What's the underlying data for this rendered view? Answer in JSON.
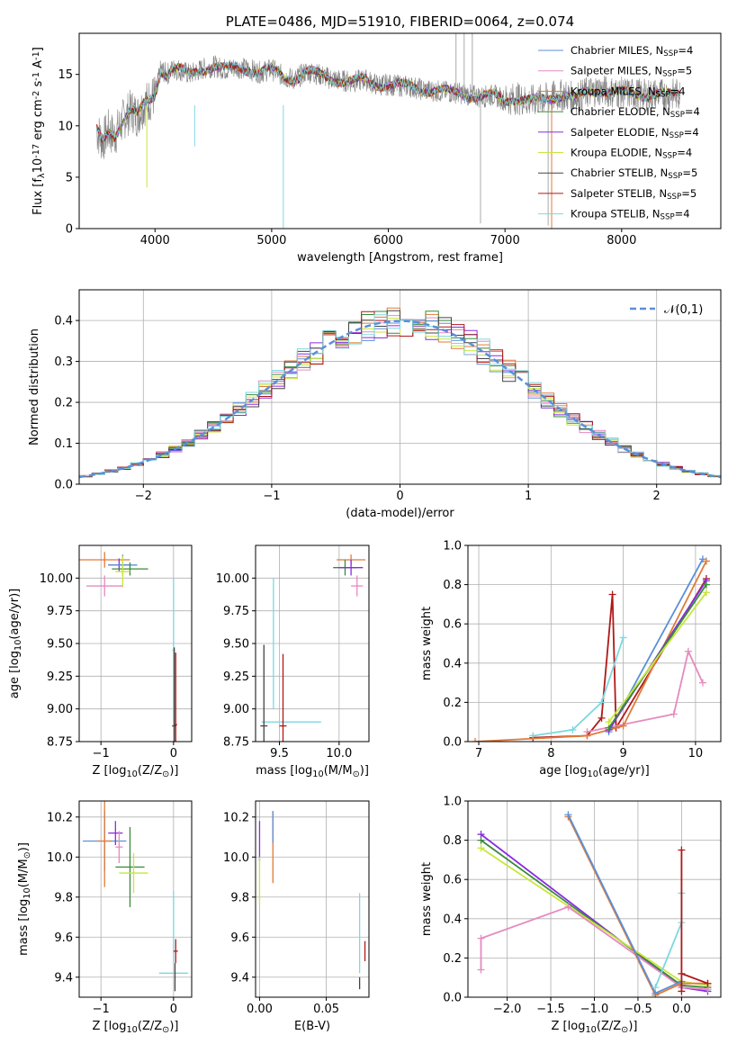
{
  "chart_data": [
    {
      "id": "spectrum",
      "type": "line",
      "title": "PLATE=0486, MJD=51910, FIBERID=0064, z=0.074",
      "xlabel": "wavelength [Angstrom, rest frame]",
      "ylabel": "Flux [f$_\\lambda$10$^{-17}$ erg cm$^{-2}$ s$^{-1}$ A$^{-1}$]",
      "xlim": [
        3350,
        8850
      ],
      "ylim": [
        0,
        19
      ],
      "xticks": [
        4000,
        5000,
        6000,
        7000,
        8000
      ],
      "yticks": [
        0,
        5,
        10,
        15
      ],
      "legend_position": "top-right",
      "series": [
        {
          "name": "Chabrier MILES, N$_{SSP}$=4",
          "color": "#5b8fd9"
        },
        {
          "name": "Salpeter MILES, N$_{SSP}$=5",
          "color": "#e58ac0"
        },
        {
          "name": "Kroupa MILES, N$_{SSP}$=4",
          "color": "#e07b39"
        },
        {
          "name": "Chabrier ELODIE, N$_{SSP}$=4",
          "color": "#3a8a3a"
        },
        {
          "name": "Salpeter ELODIE, N$_{SSP}$=4",
          "color": "#8a2be2"
        },
        {
          "name": "Kroupa ELODIE, N$_{SSP}$=4",
          "color": "#c8e63c"
        },
        {
          "name": "Chabrier STELIB, N$_{SSP}$=5",
          "color": "#444444"
        },
        {
          "name": "Salpeter STELIB, N$_{SSP}$=5",
          "color": "#b01818"
        },
        {
          "name": "Kroupa STELIB, N$_{SSP}$=4",
          "color": "#7dd8e0"
        }
      ],
      "data_color": "#808080",
      "data_points": [
        [
          3500,
          9.5
        ],
        [
          3550,
          8.5
        ],
        [
          3600,
          9.5
        ],
        [
          3650,
          9
        ],
        [
          3700,
          10
        ],
        [
          3750,
          11
        ],
        [
          3800,
          11.5
        ],
        [
          3850,
          11
        ],
        [
          3900,
          12
        ],
        [
          3950,
          12.5
        ],
        [
          4000,
          13
        ],
        [
          4050,
          15.5
        ],
        [
          4100,
          15
        ],
        [
          4150,
          15.5
        ],
        [
          4200,
          15.5
        ],
        [
          4300,
          15
        ],
        [
          4400,
          15.5
        ],
        [
          4500,
          15.8
        ],
        [
          4600,
          15.5
        ],
        [
          4700,
          15.7
        ],
        [
          4800,
          15.5
        ],
        [
          4900,
          15.2
        ],
        [
          5000,
          15.5
        ],
        [
          5100,
          14.8
        ],
        [
          5200,
          14.5
        ],
        [
          5300,
          15.3
        ],
        [
          5400,
          15
        ],
        [
          5500,
          14.6
        ],
        [
          5600,
          14.4
        ],
        [
          5700,
          14.3
        ],
        [
          5800,
          14.5
        ],
        [
          5900,
          14
        ],
        [
          6000,
          14
        ],
        [
          6100,
          13.9
        ],
        [
          6200,
          13.8
        ],
        [
          6300,
          13.5
        ],
        [
          6400,
          13.4
        ],
        [
          6500,
          13.3
        ],
        [
          6600,
          13.2
        ],
        [
          6700,
          13
        ],
        [
          6800,
          12.8
        ],
        [
          6900,
          13
        ],
        [
          7000,
          12.5
        ],
        [
          7100,
          12.7
        ],
        [
          7200,
          12.4
        ],
        [
          7300,
          12.5
        ],
        [
          7400,
          12.8
        ],
        [
          7500,
          13
        ],
        [
          7600,
          12.7
        ],
        [
          7700,
          13.2
        ],
        [
          7800,
          13.5
        ],
        [
          7900,
          13.3
        ],
        [
          8000,
          13.2
        ],
        [
          8100,
          13.1
        ],
        [
          8200,
          13
        ],
        [
          8300,
          13.1
        ],
        [
          8400,
          13
        ],
        [
          8500,
          13.1
        ]
      ]
    },
    {
      "id": "residuals",
      "type": "histogram",
      "xlabel": "(data-model)/error",
      "ylabel": "Normed distribution",
      "xlim": [
        -2.5,
        2.5
      ],
      "ylim": [
        0,
        0.475
      ],
      "xticks": [
        -2,
        -1,
        0,
        1,
        2
      ],
      "yticks": [
        0.0,
        0.1,
        0.2,
        0.3,
        0.4
      ],
      "grid": true,
      "legend_position": "top-right",
      "reference_curve": {
        "name": "$\\mathcal{N}(0,1)$",
        "color": "#5b8fd9"
      }
    },
    {
      "id": "age_vs_Z",
      "type": "errorbar",
      "xlabel": "Z [log$_{10}$($Z/Z_\\odot$)]",
      "ylabel": "age  [log$_{10}$($age/yr$)]",
      "xlim": [
        -1.3,
        0.25
      ],
      "ylim": [
        8.75,
        10.25
      ],
      "xticks": [
        -1,
        0
      ],
      "yticks": [
        8.75,
        9.0,
        9.25,
        9.5,
        9.75,
        10.0
      ],
      "grid": true,
      "points": [
        {
          "x": -0.95,
          "y": 10.14,
          "xerr": 0.35,
          "yerr": 0.06,
          "color": "#e07b39"
        },
        {
          "x": -0.75,
          "y": 10.1,
          "xerr": 0.15,
          "yerr": 0.05,
          "color": "#8a2be2"
        },
        {
          "x": -0.7,
          "y": 10.1,
          "xerr": 0.2,
          "yerr": 0.08,
          "color": "#5b8fd9"
        },
        {
          "x": -0.6,
          "y": 10.07,
          "xerr": 0.25,
          "yerr": 0.05,
          "color": "#3a8a3a"
        },
        {
          "x": -0.7,
          "y": 10.05,
          "xerr": 0.1,
          "yerr": 0.12,
          "color": "#c8e63c"
        },
        {
          "x": -0.95,
          "y": 9.94,
          "xerr": 0.25,
          "yerr": 0.08,
          "color": "#e58ac0"
        },
        {
          "x": 0.0,
          "y": 9.45,
          "xerr": 0.02,
          "yerr": 0.55,
          "color": "#7dd8e0"
        },
        {
          "x": 0.01,
          "y": 8.87,
          "xerr": 0.03,
          "yerr": 0.6,
          "color": "#444444"
        },
        {
          "x": 0.03,
          "y": 8.88,
          "xerr": 0.02,
          "yerr": 0.55,
          "color": "#b01818"
        }
      ]
    },
    {
      "id": "age_vs_mass",
      "type": "errorbar",
      "xlabel": "mass [log$_{10}$($M/M_\\odot$)]",
      "ylabel": "",
      "xlim": [
        9.3,
        10.25
      ],
      "ylim": [
        8.75,
        10.25
      ],
      "xticks": [
        9.5,
        10.0
      ],
      "yticks": [
        8.75,
        9.0,
        9.25,
        9.5,
        9.75,
        10.0
      ],
      "grid": true,
      "points": [
        {
          "x": 10.1,
          "y": 10.14,
          "xerr": 0.12,
          "yerr": 0.04,
          "color": "#e07b39"
        },
        {
          "x": 10.05,
          "y": 10.08,
          "xerr": 0.1,
          "yerr": 0.06,
          "color": "#3a8a3a"
        },
        {
          "x": 10.1,
          "y": 10.08,
          "xerr": 0.1,
          "yerr": 0.06,
          "color": "#8a2be2"
        },
        {
          "x": 10.15,
          "y": 9.94,
          "xerr": 0.05,
          "yerr": 0.08,
          "color": "#e58ac0"
        },
        {
          "x": 9.6,
          "y": 8.9,
          "xerr": 0.25,
          "yerr": 0.0,
          "color": "#7dd8e0"
        },
        {
          "x": 9.45,
          "y": 9.5,
          "xerr": 0.0,
          "yerr": 0.5,
          "color": "#7dd8e0"
        },
        {
          "x": 9.37,
          "y": 8.87,
          "xerr": 0.03,
          "yerr": 0.62,
          "color": "#444444"
        },
        {
          "x": 9.53,
          "y": 8.87,
          "xerr": 0.03,
          "yerr": 0.55,
          "color": "#b01818"
        }
      ]
    },
    {
      "id": "massweight_vs_age",
      "type": "line",
      "xlabel": "age  [log$_{10}$($age/yr$)]",
      "ylabel": "mass weight",
      "xlim": [
        6.85,
        10.35
      ],
      "ylim": [
        0,
        1
      ],
      "xticks": [
        7,
        8,
        9,
        10
      ],
      "yticks": [
        0.0,
        0.2,
        0.4,
        0.6,
        0.8,
        1.0
      ],
      "grid": true,
      "series": [
        {
          "color": "#b01818",
          "points": [
            [
              7.75,
              0.02
            ],
            [
              8.5,
              0.03
            ],
            [
              8.7,
              0.12
            ],
            [
              8.85,
              0.75
            ],
            [
              8.9,
              0.07
            ],
            [
              10.15,
              0.83
            ]
          ]
        },
        {
          "color": "#7dd8e0",
          "points": [
            [
              7.75,
              0.03
            ],
            [
              8.3,
              0.06
            ],
            [
              8.7,
              0.2
            ],
            [
              9.0,
              0.53
            ]
          ]
        },
        {
          "color": "#e58ac0",
          "points": [
            [
              8.5,
              0.05
            ],
            [
              9.7,
              0.14
            ],
            [
              9.9,
              0.46
            ],
            [
              10.1,
              0.3
            ]
          ]
        },
        {
          "color": "#e07b39",
          "points": [
            [
              6.95,
              0.0
            ],
            [
              8.5,
              0.03
            ],
            [
              9.0,
              0.08
            ],
            [
              10.15,
              0.92
            ]
          ]
        },
        {
          "color": "#5b8fd9",
          "points": [
            [
              8.8,
              0.05
            ],
            [
              10.1,
              0.93
            ]
          ]
        },
        {
          "color": "#8a2be2",
          "points": [
            [
              8.8,
              0.06
            ],
            [
              10.15,
              0.82
            ]
          ]
        },
        {
          "color": "#3a8a3a",
          "points": [
            [
              8.8,
              0.07
            ],
            [
              10.15,
              0.8
            ]
          ]
        },
        {
          "color": "#c8e63c",
          "points": [
            [
              8.8,
              0.1
            ],
            [
              10.15,
              0.76
            ]
          ]
        }
      ]
    },
    {
      "id": "mass_vs_Z",
      "type": "errorbar",
      "xlabel": "Z [log$_{10}$($Z/Z_\\odot$)]",
      "ylabel": "mass [log$_{10}$($M/M_\\odot$)]",
      "xlim": [
        -1.3,
        0.25
      ],
      "ylim": [
        9.3,
        10.28
      ],
      "xticks": [
        -1,
        0
      ],
      "yticks": [
        9.4,
        9.6,
        9.8,
        10.0,
        10.2
      ],
      "grid": true,
      "points": [
        {
          "x": -0.95,
          "y": 10.08,
          "xerr": 0.3,
          "yerr": 0.15,
          "color": "#5b8fd9"
        },
        {
          "x": -0.95,
          "y": 10.08,
          "xerr": 0.1,
          "yerr": 0.23,
          "color": "#e07b39"
        },
        {
          "x": -0.8,
          "y": 10.12,
          "xerr": 0.1,
          "yerr": 0.06,
          "color": "#8a2be2"
        },
        {
          "x": -0.75,
          "y": 10.05,
          "xerr": 0.05,
          "yerr": 0.08,
          "color": "#e58ac0"
        },
        {
          "x": -0.6,
          "y": 9.95,
          "xerr": 0.2,
          "yerr": 0.2,
          "color": "#3a8a3a"
        },
        {
          "x": -0.55,
          "y": 9.92,
          "xerr": 0.2,
          "yerr": 0.1,
          "color": "#c8e63c"
        },
        {
          "x": 0.0,
          "y": 9.65,
          "xerr": 0.0,
          "yerr": 0.18,
          "color": "#7dd8e0"
        },
        {
          "x": 0.0,
          "y": 9.42,
          "xerr": 0.2,
          "yerr": 0.0,
          "color": "#7dd8e0"
        },
        {
          "x": 0.02,
          "y": 9.4,
          "xerr": 0.0,
          "yerr": 0.07,
          "color": "#444444"
        },
        {
          "x": 0.03,
          "y": 9.53,
          "xerr": 0.03,
          "yerr": 0.06,
          "color": "#b01818"
        }
      ]
    },
    {
      "id": "mass_vs_EBV",
      "type": "errorbar",
      "xlabel": "E(B-V)",
      "ylabel": "",
      "xlim": [
        -0.003,
        0.082
      ],
      "ylim": [
        9.3,
        10.28
      ],
      "xticks": [
        0.0,
        0.05
      ],
      "yticks": [
        9.4,
        9.6,
        9.8,
        10.0,
        10.2
      ],
      "grid": true,
      "points": [
        {
          "x": 0.0,
          "y": 10.08,
          "xerr": 0,
          "yerr": 0.1,
          "color": "#8a2be2"
        },
        {
          "x": 0.0,
          "y": 9.88,
          "xerr": 0,
          "yerr": 0.12,
          "color": "#c8e63c"
        },
        {
          "x": 0.01,
          "y": 10.05,
          "xerr": 0,
          "yerr": 0.18,
          "color": "#e07b39"
        },
        {
          "x": 0.01,
          "y": 10.15,
          "xerr": 0,
          "yerr": 0.08,
          "color": "#5b8fd9"
        },
        {
          "x": 0.075,
          "y": 9.62,
          "xerr": 0,
          "yerr": 0.2,
          "color": "#7dd8e0"
        },
        {
          "x": 0.075,
          "y": 9.37,
          "xerr": 0,
          "yerr": 0.03,
          "color": "#444444"
        },
        {
          "x": 0.079,
          "y": 9.53,
          "xerr": 0,
          "yerr": 0.05,
          "color": "#b01818"
        }
      ]
    },
    {
      "id": "massweight_vs_Z",
      "type": "line",
      "xlabel": "Z [log$_{10}$($Z/Z_\\odot$)]",
      "ylabel": "mass weight",
      "xlim": [
        -2.45,
        0.45
      ],
      "ylim": [
        0,
        1
      ],
      "xticks": [
        -2.0,
        -1.5,
        -1.0,
        -0.5,
        0.0
      ],
      "yticks": [
        0.0,
        0.2,
        0.4,
        0.6,
        0.8,
        1.0
      ],
      "grid": true,
      "series": [
        {
          "color": "#8a2be2",
          "points": [
            [
              -2.3,
              0.83
            ],
            [
              0.0,
              0.05
            ],
            [
              0.3,
              0.03
            ]
          ]
        },
        {
          "color": "#3a8a3a",
          "points": [
            [
              -2.3,
              0.8
            ],
            [
              0.0,
              0.06
            ],
            [
              0.3,
              0.05
            ]
          ]
        },
        {
          "color": "#c8e63c",
          "points": [
            [
              -2.3,
              0.76
            ],
            [
              0.0,
              0.08
            ],
            [
              0.3,
              0.06
            ]
          ]
        },
        {
          "color": "#e58ac0",
          "points": [
            [
              -2.3,
              0.14
            ],
            [
              -2.3,
              0.3
            ],
            [
              -1.3,
              0.46
            ],
            [
              0.0,
              0.05
            ],
            [
              0.3,
              0.04
            ]
          ]
        },
        {
          "color": "#e07b39",
          "points": [
            [
              -1.3,
              0.92
            ],
            [
              -0.3,
              0.01
            ],
            [
              0.0,
              0.07
            ],
            [
              0.3,
              0.07
            ]
          ]
        },
        {
          "color": "#5b8fd9",
          "points": [
            [
              -1.3,
              0.93
            ],
            [
              -0.3,
              0.02
            ],
            [
              0.0,
              0.08
            ]
          ]
        },
        {
          "color": "#7dd8e0",
          "points": [
            [
              -0.3,
              0.05
            ],
            [
              0.0,
              0.38
            ],
            [
              0.0,
              0.53
            ]
          ]
        },
        {
          "color": "#b01818",
          "points": [
            [
              0.0,
              0.03
            ],
            [
              0.0,
              0.75
            ],
            [
              0.0,
              0.12
            ],
            [
              0.3,
              0.07
            ]
          ]
        }
      ]
    }
  ]
}
